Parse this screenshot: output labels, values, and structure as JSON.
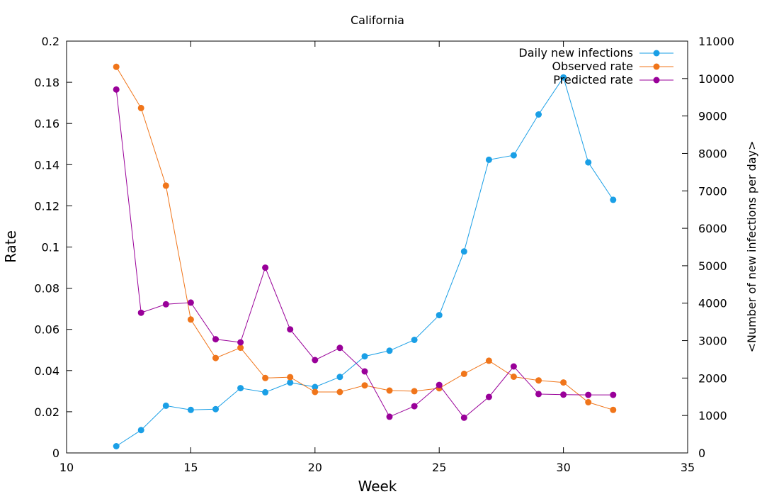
{
  "chart_data": {
    "type": "line",
    "title": "California",
    "xlabel": "Week",
    "ylabel": "Rate",
    "y2label": "<Number of new infections per day>",
    "xlim": [
      10,
      35
    ],
    "ylim": [
      0,
      0.2
    ],
    "y2lim": [
      0,
      11000
    ],
    "xticks": [
      10,
      15,
      20,
      25,
      30,
      35
    ],
    "yticks": [
      0,
      0.02,
      0.04,
      0.06,
      0.08,
      0.1,
      0.12,
      0.14,
      0.16,
      0.18,
      0.2
    ],
    "y2ticks": [
      0,
      1000,
      2000,
      3000,
      4000,
      5000,
      6000,
      7000,
      8000,
      9000,
      10000,
      11000
    ],
    "grid": false,
    "legend_position": "top-right",
    "series": [
      {
        "name": "Daily new infections",
        "axis": "right",
        "color": "#1a9fe6",
        "x": [
          12,
          13,
          14,
          15,
          16,
          17,
          18,
          19,
          20,
          21,
          22,
          23,
          24,
          25,
          26,
          27,
          28,
          29,
          30,
          31,
          32
        ],
        "values": [
          180,
          610,
          1260,
          1150,
          1170,
          1730,
          1620,
          1880,
          1760,
          2030,
          2580,
          2730,
          3020,
          3680,
          5380,
          7830,
          7950,
          9040,
          10030,
          7760,
          6760
        ]
      },
      {
        "name": "Observed rate",
        "axis": "left",
        "color": "#f0751a",
        "x": [
          12,
          13,
          14,
          15,
          16,
          17,
          18,
          19,
          20,
          21,
          22,
          23,
          24,
          25,
          26,
          27,
          28,
          29,
          30,
          31,
          32
        ],
        "values": [
          0.1875,
          0.1675,
          0.1298,
          0.0648,
          0.0461,
          0.0511,
          0.0364,
          0.0368,
          0.0296,
          0.0296,
          0.0328,
          0.0303,
          0.03,
          0.0314,
          0.0384,
          0.0448,
          0.037,
          0.0352,
          0.0342,
          0.0246,
          0.0209
        ]
      },
      {
        "name": "Predicted rate",
        "axis": "left",
        "color": "#990099",
        "x": [
          12,
          13,
          14,
          15,
          16,
          17,
          18,
          19,
          20,
          21,
          22,
          23,
          24,
          25,
          26,
          27,
          28,
          29,
          30,
          31,
          32
        ],
        "values": [
          0.1765,
          0.0681,
          0.0722,
          0.073,
          0.0552,
          0.0537,
          0.09,
          0.06,
          0.0451,
          0.051,
          0.0396,
          0.0176,
          0.0227,
          0.033,
          0.0171,
          0.0272,
          0.042,
          0.0286,
          0.0283,
          0.0282,
          0.0282
        ]
      }
    ]
  }
}
